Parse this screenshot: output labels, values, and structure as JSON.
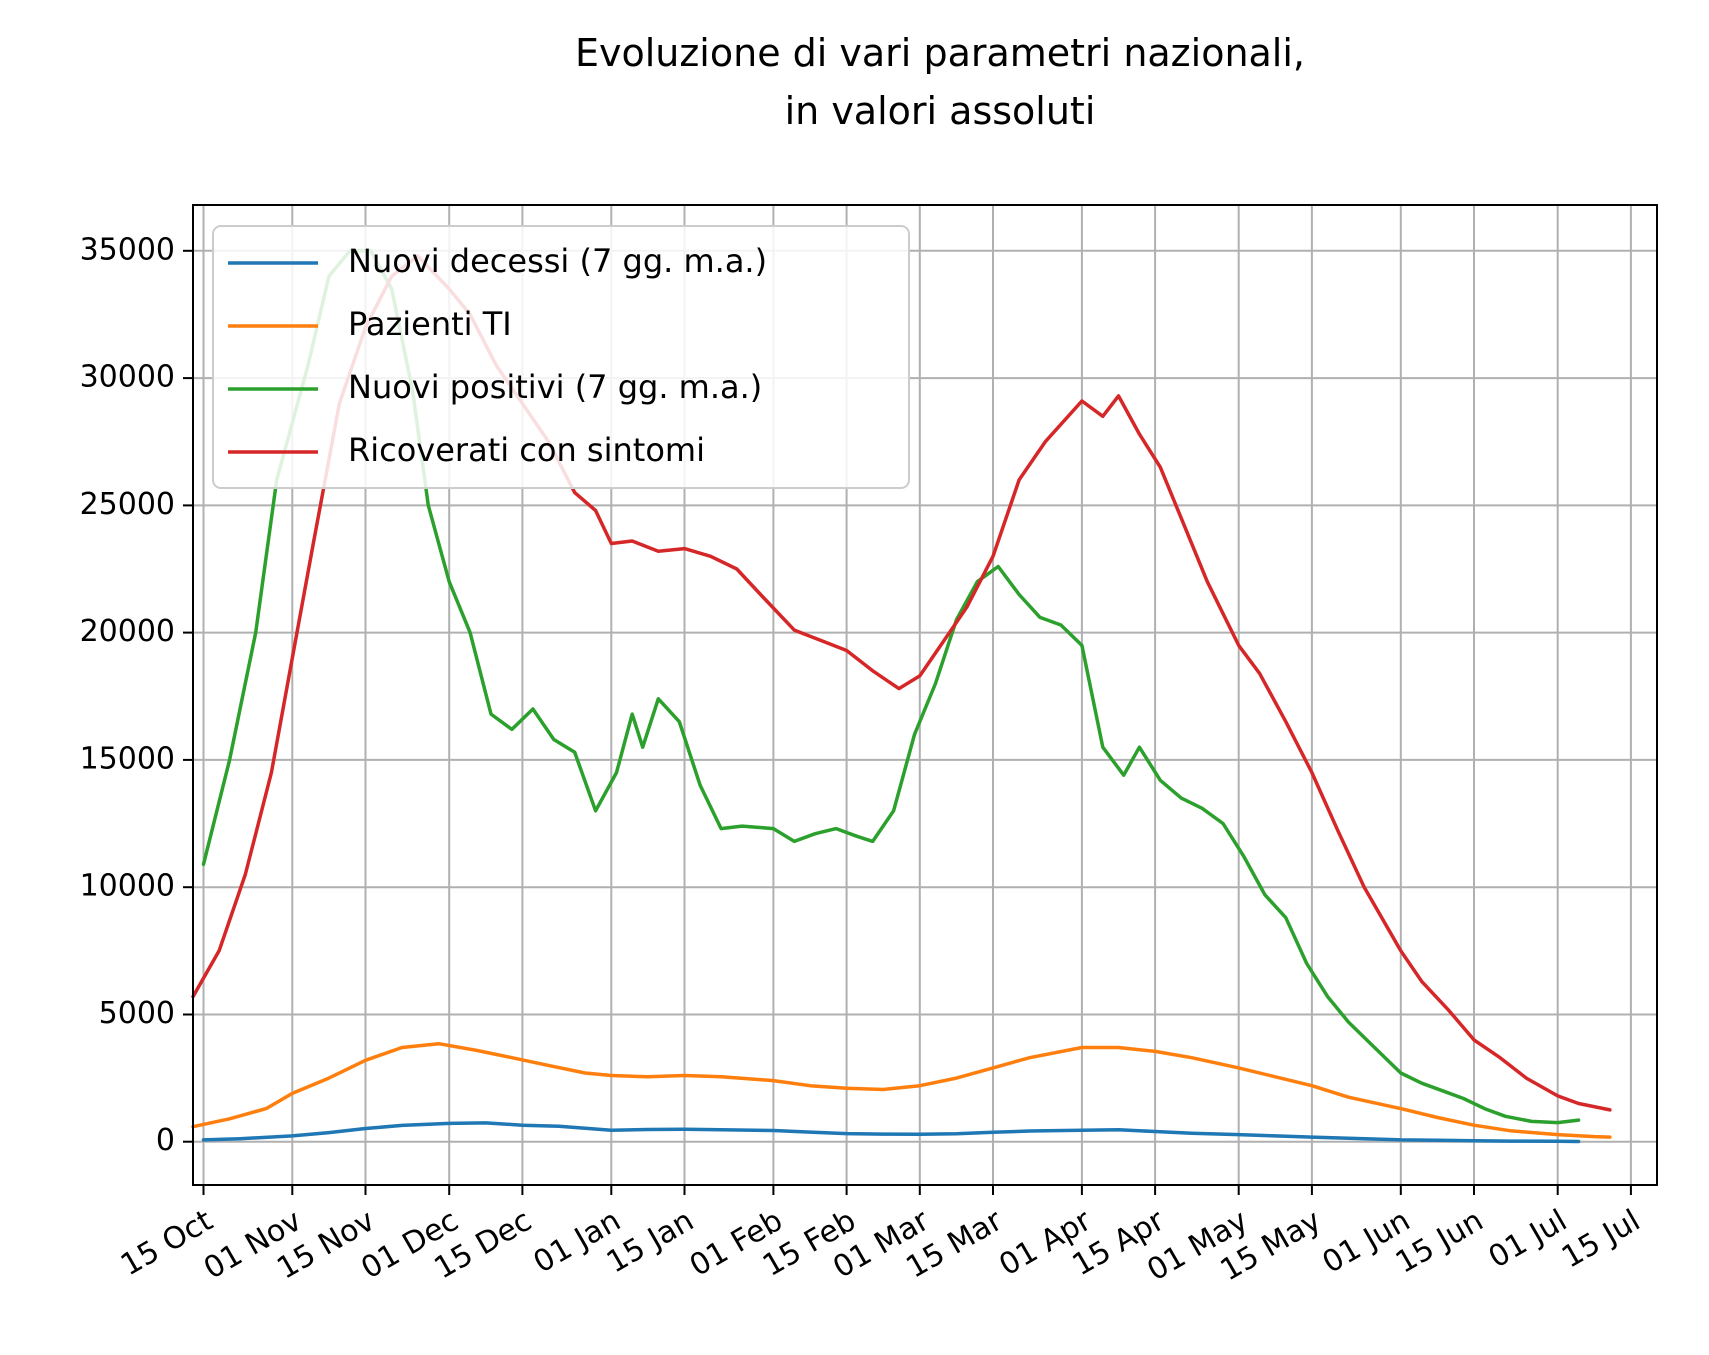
{
  "chart_data": {
    "type": "line",
    "title_lines": [
      "Evoluzione di vari parametri nazionali,",
      "in valori assoluti"
    ],
    "xlabel": "",
    "ylabel": "",
    "x_ticks": [
      "15 Oct",
      "01 Nov",
      "15 Nov",
      "01 Dec",
      "15 Dec",
      "01 Jan",
      "15 Jan",
      "01 Feb",
      "15 Feb",
      "01 Mar",
      "15 Mar",
      "01 Apr",
      "15 Apr",
      "01 May",
      "15 May",
      "01 Jun",
      "15 Jun",
      "01 Jul",
      "15 Jul"
    ],
    "x_tick_dates": [
      "2020-10-15",
      "2020-11-01",
      "2020-11-15",
      "2020-12-01",
      "2020-12-15",
      "2021-01-01",
      "2021-01-15",
      "2021-02-01",
      "2021-02-15",
      "2021-03-01",
      "2021-03-15",
      "2021-04-01",
      "2021-04-15",
      "2021-05-01",
      "2021-05-15",
      "2021-06-01",
      "2021-06-15",
      "2021-07-01",
      "2021-07-15"
    ],
    "xlim": [
      "2020-10-13",
      "2021-07-20"
    ],
    "y_ticks": [
      "0",
      "5000",
      "10000",
      "15000",
      "20000",
      "25000",
      "30000",
      "35000"
    ],
    "ylim": [
      -1700,
      36800
    ],
    "grid": true,
    "legend_position": "top-left",
    "series": [
      {
        "name": "Nuovi decessi (7 gg. m.a.)",
        "color": "#1f77b4",
        "points": [
          [
            "2020-10-15",
            70
          ],
          [
            "2020-10-22",
            120
          ],
          [
            "2020-11-01",
            230
          ],
          [
            "2020-11-08",
            360
          ],
          [
            "2020-11-15",
            520
          ],
          [
            "2020-11-22",
            640
          ],
          [
            "2020-12-01",
            720
          ],
          [
            "2020-12-08",
            740
          ],
          [
            "2020-12-15",
            650
          ],
          [
            "2020-12-22",
            610
          ],
          [
            "2021-01-01",
            450
          ],
          [
            "2021-01-08",
            480
          ],
          [
            "2021-01-15",
            490
          ],
          [
            "2021-01-22",
            470
          ],
          [
            "2021-02-01",
            440
          ],
          [
            "2021-02-08",
            380
          ],
          [
            "2021-02-15",
            320
          ],
          [
            "2021-02-22",
            300
          ],
          [
            "2021-03-01",
            290
          ],
          [
            "2021-03-08",
            310
          ],
          [
            "2021-03-15",
            370
          ],
          [
            "2021-03-22",
            420
          ],
          [
            "2021-04-01",
            450
          ],
          [
            "2021-04-08",
            470
          ],
          [
            "2021-04-15",
            400
          ],
          [
            "2021-04-22",
            330
          ],
          [
            "2021-05-01",
            280
          ],
          [
            "2021-05-08",
            230
          ],
          [
            "2021-05-15",
            180
          ],
          [
            "2021-05-22",
            140
          ],
          [
            "2021-06-01",
            70
          ],
          [
            "2021-06-08",
            60
          ],
          [
            "2021-06-15",
            40
          ],
          [
            "2021-06-22",
            25
          ],
          [
            "2021-07-01",
            15
          ],
          [
            "2021-07-05",
            10
          ]
        ]
      },
      {
        "name": "Pazienti TI",
        "color": "#ff7f0e",
        "points": [
          [
            "2020-10-13",
            590
          ],
          [
            "2020-10-20",
            900
          ],
          [
            "2020-10-27",
            1300
          ],
          [
            "2020-11-01",
            1900
          ],
          [
            "2020-11-08",
            2500
          ],
          [
            "2020-11-15",
            3200
          ],
          [
            "2020-11-22",
            3700
          ],
          [
            "2020-11-29",
            3850
          ],
          [
            "2020-12-06",
            3600
          ],
          [
            "2020-12-13",
            3300
          ],
          [
            "2020-12-20",
            3000
          ],
          [
            "2020-12-27",
            2700
          ],
          [
            "2021-01-01",
            2600
          ],
          [
            "2021-01-08",
            2550
          ],
          [
            "2021-01-15",
            2600
          ],
          [
            "2021-01-22",
            2550
          ],
          [
            "2021-02-01",
            2400
          ],
          [
            "2021-02-08",
            2200
          ],
          [
            "2021-02-15",
            2100
          ],
          [
            "2021-02-22",
            2050
          ],
          [
            "2021-03-01",
            2200
          ],
          [
            "2021-03-08",
            2500
          ],
          [
            "2021-03-15",
            2900
          ],
          [
            "2021-03-22",
            3300
          ],
          [
            "2021-04-01",
            3700
          ],
          [
            "2021-04-08",
            3700
          ],
          [
            "2021-04-15",
            3550
          ],
          [
            "2021-04-22",
            3300
          ],
          [
            "2021-05-01",
            2900
          ],
          [
            "2021-05-08",
            2550
          ],
          [
            "2021-05-15",
            2200
          ],
          [
            "2021-05-22",
            1750
          ],
          [
            "2021-06-01",
            1300
          ],
          [
            "2021-06-08",
            950
          ],
          [
            "2021-06-15",
            650
          ],
          [
            "2021-06-22",
            430
          ],
          [
            "2021-07-01",
            280
          ],
          [
            "2021-07-08",
            200
          ],
          [
            "2021-07-11",
            180
          ]
        ]
      },
      {
        "name": "Nuovi positivi (7 gg. m.a.)",
        "color": "#2ca02c",
        "points": [
          [
            "2020-10-15",
            10900
          ],
          [
            "2020-10-20",
            15000
          ],
          [
            "2020-10-25",
            20000
          ],
          [
            "2020-10-29",
            26000
          ],
          [
            "2020-11-04",
            30500
          ],
          [
            "2020-11-08",
            34000
          ],
          [
            "2020-11-12",
            35000
          ],
          [
            "2020-11-16",
            35000
          ],
          [
            "2020-11-20",
            33500
          ],
          [
            "2020-11-24",
            29500
          ],
          [
            "2020-11-27",
            25000
          ],
          [
            "2020-12-01",
            22000
          ],
          [
            "2020-12-05",
            20000
          ],
          [
            "2020-12-09",
            16800
          ],
          [
            "2020-12-13",
            16200
          ],
          [
            "2020-12-17",
            17000
          ],
          [
            "2020-12-21",
            15800
          ],
          [
            "2020-12-25",
            15300
          ],
          [
            "2020-12-29",
            13000
          ],
          [
            "2021-01-02",
            14500
          ],
          [
            "2021-01-05",
            16800
          ],
          [
            "2021-01-07",
            15500
          ],
          [
            "2021-01-10",
            17400
          ],
          [
            "2021-01-14",
            16500
          ],
          [
            "2021-01-18",
            14000
          ],
          [
            "2021-01-22",
            12300
          ],
          [
            "2021-01-26",
            12400
          ],
          [
            "2021-02-01",
            12300
          ],
          [
            "2021-02-05",
            11800
          ],
          [
            "2021-02-09",
            12100
          ],
          [
            "2021-02-13",
            12300
          ],
          [
            "2021-02-17",
            12000
          ],
          [
            "2021-02-20",
            11800
          ],
          [
            "2021-02-24",
            13000
          ],
          [
            "2021-02-28",
            16000
          ],
          [
            "2021-03-04",
            18000
          ],
          [
            "2021-03-08",
            20500
          ],
          [
            "2021-03-12",
            22000
          ],
          [
            "2021-03-16",
            22600
          ],
          [
            "2021-03-20",
            21500
          ],
          [
            "2021-03-24",
            20600
          ],
          [
            "2021-03-28",
            20300
          ],
          [
            "2021-04-01",
            19500
          ],
          [
            "2021-04-05",
            15500
          ],
          [
            "2021-04-09",
            14400
          ],
          [
            "2021-04-12",
            15500
          ],
          [
            "2021-04-16",
            14200
          ],
          [
            "2021-04-20",
            13500
          ],
          [
            "2021-04-24",
            13100
          ],
          [
            "2021-04-28",
            12500
          ],
          [
            "2021-05-02",
            11200
          ],
          [
            "2021-05-06",
            9700
          ],
          [
            "2021-05-10",
            8800
          ],
          [
            "2021-05-14",
            7000
          ],
          [
            "2021-05-18",
            5700
          ],
          [
            "2021-05-22",
            4700
          ],
          [
            "2021-05-26",
            3900
          ],
          [
            "2021-06-01",
            2700
          ],
          [
            "2021-06-05",
            2300
          ],
          [
            "2021-06-09",
            2000
          ],
          [
            "2021-06-13",
            1700
          ],
          [
            "2021-06-17",
            1300
          ],
          [
            "2021-06-21",
            1000
          ],
          [
            "2021-06-26",
            800
          ],
          [
            "2021-07-01",
            750
          ],
          [
            "2021-07-05",
            850
          ]
        ]
      },
      {
        "name": "Ricoverati con sintomi",
        "color": "#d62728",
        "points": [
          [
            "2020-10-13",
            5700
          ],
          [
            "2020-10-18",
            7500
          ],
          [
            "2020-10-23",
            10500
          ],
          [
            "2020-10-28",
            14500
          ],
          [
            "2020-11-01",
            19000
          ],
          [
            "2020-11-05",
            23500
          ],
          [
            "2020-11-10",
            29000
          ],
          [
            "2020-11-15",
            32000
          ],
          [
            "2020-11-20",
            34000
          ],
          [
            "2020-11-25",
            34800
          ],
          [
            "2020-12-01",
            33500
          ],
          [
            "2020-12-05",
            32500
          ],
          [
            "2020-12-10",
            30500
          ],
          [
            "2020-12-15",
            29000
          ],
          [
            "2020-12-20",
            27500
          ],
          [
            "2020-12-25",
            25500
          ],
          [
            "2020-12-29",
            24800
          ],
          [
            "2021-01-01",
            23500
          ],
          [
            "2021-01-05",
            23600
          ],
          [
            "2021-01-10",
            23200
          ],
          [
            "2021-01-15",
            23300
          ],
          [
            "2021-01-20",
            23000
          ],
          [
            "2021-01-25",
            22500
          ],
          [
            "2021-01-30",
            21400
          ],
          [
            "2021-02-05",
            20100
          ],
          [
            "2021-02-10",
            19700
          ],
          [
            "2021-02-15",
            19300
          ],
          [
            "2021-02-20",
            18500
          ],
          [
            "2021-02-25",
            17800
          ],
          [
            "2021-03-01",
            18300
          ],
          [
            "2021-03-05",
            19500
          ],
          [
            "2021-03-10",
            21000
          ],
          [
            "2021-03-15",
            23000
          ],
          [
            "2021-03-20",
            26000
          ],
          [
            "2021-03-25",
            27500
          ],
          [
            "2021-04-01",
            29100
          ],
          [
            "2021-04-05",
            28500
          ],
          [
            "2021-04-08",
            29300
          ],
          [
            "2021-04-12",
            27800
          ],
          [
            "2021-04-16",
            26500
          ],
          [
            "2021-04-20",
            24500
          ],
          [
            "2021-04-25",
            22000
          ],
          [
            "2021-05-01",
            19500
          ],
          [
            "2021-05-05",
            18400
          ],
          [
            "2021-05-10",
            16500
          ],
          [
            "2021-05-15",
            14500
          ],
          [
            "2021-05-20",
            12200
          ],
          [
            "2021-05-25",
            10000
          ],
          [
            "2021-06-01",
            7500
          ],
          [
            "2021-06-05",
            6300
          ],
          [
            "2021-06-10",
            5200
          ],
          [
            "2021-06-15",
            4000
          ],
          [
            "2021-06-20",
            3300
          ],
          [
            "2021-06-25",
            2500
          ],
          [
            "2021-07-01",
            1800
          ],
          [
            "2021-07-05",
            1500
          ],
          [
            "2021-07-11",
            1250
          ]
        ]
      }
    ]
  }
}
